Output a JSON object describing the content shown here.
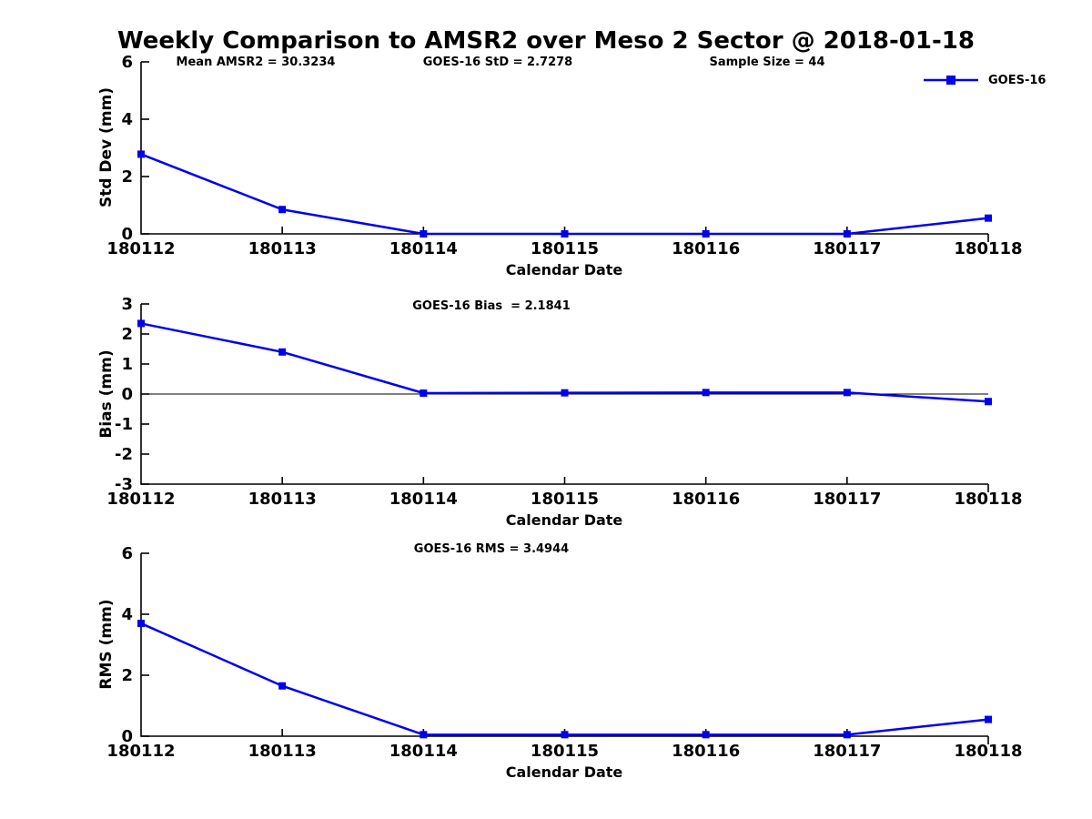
{
  "page": {
    "title": "Weekly Comparison to AMSR2 over Meso 2 Sector @ 2018-01-18",
    "background_color": "#ffffff"
  },
  "legend": {
    "label": "GOES-16",
    "series_color": "#0000EE",
    "marker": "filled-square",
    "position": "top-right"
  },
  "chart_data": [
    {
      "type": "line",
      "ylabel": "Std Dev (mm)",
      "xlabel": "Calendar Date",
      "categories": [
        "180112",
        "180113",
        "180114",
        "180115",
        "180116",
        "180117",
        "180118"
      ],
      "series": [
        {
          "name": "GOES-16",
          "values": [
            2.78,
            0.85,
            0.0,
            0.0,
            0.0,
            0.0,
            0.55
          ]
        }
      ],
      "ylim": [
        0,
        6
      ],
      "yticks": [
        0,
        2,
        4,
        6
      ],
      "zero_line": false,
      "grid": false,
      "annotations": [
        {
          "text": "Mean AMSR2 = 30.3234"
        },
        {
          "text": "GOES-16 StD = 2.7278"
        },
        {
          "text": "Sample Size = 44"
        }
      ]
    },
    {
      "type": "line",
      "ylabel": "Bias (mm)",
      "xlabel": "Calendar Date",
      "categories": [
        "180112",
        "180113",
        "180114",
        "180115",
        "180116",
        "180117",
        "180118"
      ],
      "series": [
        {
          "name": "GOES-16",
          "values": [
            2.35,
            1.4,
            0.03,
            0.04,
            0.05,
            0.05,
            -0.25
          ]
        }
      ],
      "ylim": [
        -3,
        3
      ],
      "yticks": [
        -3,
        -2,
        -1,
        0,
        1,
        2,
        3
      ],
      "zero_line": true,
      "grid": false,
      "annotations": [
        {
          "text": "GOES-16 Bias  = 2.1841"
        }
      ]
    },
    {
      "type": "line",
      "ylabel": "RMS (mm)",
      "xlabel": "Calendar Date",
      "categories": [
        "180112",
        "180113",
        "180114",
        "180115",
        "180116",
        "180117",
        "180118"
      ],
      "series": [
        {
          "name": "GOES-16",
          "values": [
            3.7,
            1.65,
            0.05,
            0.05,
            0.05,
            0.05,
            0.55
          ]
        }
      ],
      "ylim": [
        0,
        6
      ],
      "yticks": [
        0,
        2,
        4,
        6
      ],
      "zero_line": false,
      "grid": false,
      "annotations": [
        {
          "text": "GOES-16 RMS = 3.4944"
        }
      ]
    }
  ]
}
